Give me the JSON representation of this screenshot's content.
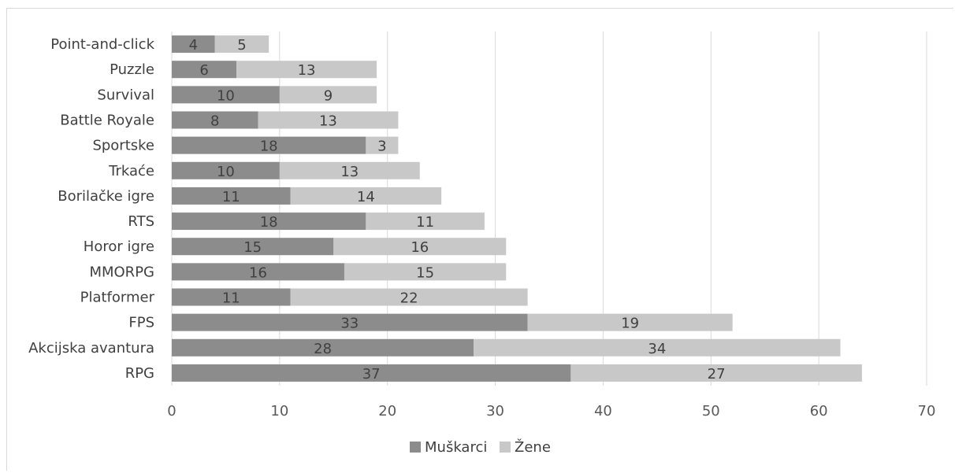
{
  "chart_data": {
    "type": "bar",
    "orientation": "horizontal",
    "stacked": true,
    "categories": [
      "Point-and-click",
      "Puzzle",
      "Survival",
      "Battle Royale",
      "Sportske",
      "Trkaće",
      "Borilačke igre",
      "RTS",
      "Horor igre",
      "MMORPG",
      "Platformer",
      "FPS",
      "Akcijska avantura",
      "RPG"
    ],
    "series": [
      {
        "name": "Muškarci",
        "color": "#8c8c8c",
        "values": [
          4,
          6,
          10,
          8,
          18,
          10,
          11,
          18,
          15,
          16,
          11,
          33,
          28,
          37
        ]
      },
      {
        "name": "Žene",
        "color": "#c8c8c8",
        "values": [
          5,
          13,
          9,
          13,
          3,
          13,
          14,
          11,
          16,
          15,
          22,
          19,
          34,
          27
        ]
      }
    ],
    "x_ticks": [
      "0",
      "10",
      "20",
      "30",
      "40",
      "50",
      "60",
      "70"
    ],
    "xlim": [
      0,
      70
    ],
    "grid": "vertical",
    "legend_position": "bottom",
    "data_labels": true
  }
}
